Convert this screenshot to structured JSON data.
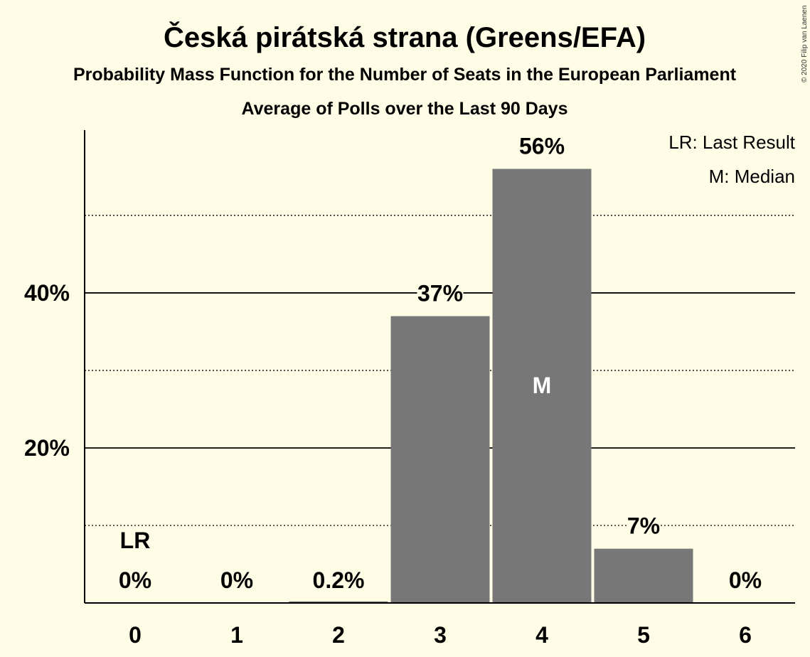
{
  "copyright": "© 2020 Filip van Laenen",
  "colors": {
    "background": "#FFFDE6",
    "bar": "#777777",
    "axis": "#000000"
  },
  "chart_data": {
    "type": "bar",
    "title": "Česká pirátská strana (Greens/EFA)",
    "subtitle": "Probability Mass Function for the Number of Seats in the European Parliament",
    "subtitle2": "Average of Polls over the Last 90 Days",
    "xlabel": "",
    "ylabel": "",
    "categories": [
      "0",
      "1",
      "2",
      "3",
      "4",
      "5",
      "6"
    ],
    "values": [
      0,
      0,
      0.2,
      37,
      56,
      7,
      0
    ],
    "value_labels": [
      "0%",
      "0%",
      "0.2%",
      "37%",
      "56%",
      "7%",
      "0%"
    ],
    "ylim": [
      0,
      61
    ],
    "yticks": [
      20,
      40
    ],
    "ytick_labels": [
      "20%",
      "40%"
    ],
    "minor_gridlines": [
      10,
      30,
      50
    ],
    "last_result_index": 0,
    "last_result_marker": "LR",
    "median_index": 4,
    "median_marker": "M",
    "legend": [
      "LR: Last Result",
      "M: Median"
    ],
    "legend_position": "top-right"
  }
}
